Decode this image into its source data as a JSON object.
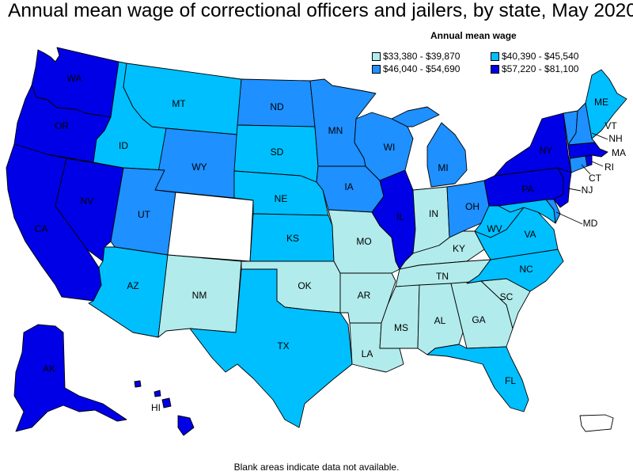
{
  "title": "Annual mean wage of correctional officers and jailers, by state, May 2020",
  "legend": {
    "title": "Annual mean wage",
    "bins": [
      {
        "label": "$33,380 - $39,870",
        "color": "#b2ebeb"
      },
      {
        "label": "$40,390 - $45,540",
        "color": "#00bfff"
      },
      {
        "label": "$46,040 - $54,690",
        "color": "#1e90ff"
      },
      {
        "label": "$57,220 - $81,100",
        "color": "#0000e6"
      }
    ]
  },
  "footnote": "Blank areas indicate data not available.",
  "states": {
    "WA": {
      "label": "WA",
      "bin": 3
    },
    "OR": {
      "label": "OR",
      "bin": 3
    },
    "CA": {
      "label": "CA",
      "bin": 3
    },
    "NV": {
      "label": "NV",
      "bin": 3
    },
    "ID": {
      "label": "ID",
      "bin": 1
    },
    "MT": {
      "label": "MT",
      "bin": 1
    },
    "WY": {
      "label": "WY",
      "bin": 2
    },
    "UT": {
      "label": "UT",
      "bin": 2
    },
    "AZ": {
      "label": "AZ",
      "bin": 1
    },
    "CO": {
      "label": "",
      "bin": null
    },
    "NM": {
      "label": "NM",
      "bin": 0
    },
    "ND": {
      "label": "ND",
      "bin": 2
    },
    "SD": {
      "label": "SD",
      "bin": 1
    },
    "NE": {
      "label": "NE",
      "bin": 1
    },
    "KS": {
      "label": "KS",
      "bin": 1
    },
    "OK": {
      "label": "OK",
      "bin": 0
    },
    "TX": {
      "label": "TX",
      "bin": 1
    },
    "MN": {
      "label": "MN",
      "bin": 2
    },
    "IA": {
      "label": "IA",
      "bin": 2
    },
    "MO": {
      "label": "MO",
      "bin": 0
    },
    "AR": {
      "label": "AR",
      "bin": 0
    },
    "LA": {
      "label": "LA",
      "bin": 0
    },
    "WI": {
      "label": "WI",
      "bin": 2
    },
    "IL": {
      "label": "IL",
      "bin": 3
    },
    "MI": {
      "label": "MI",
      "bin": 2
    },
    "IN": {
      "label": "IN",
      "bin": 0
    },
    "OH": {
      "label": "OH",
      "bin": 2
    },
    "KY": {
      "label": "KY",
      "bin": 0
    },
    "TN": {
      "label": "TN",
      "bin": 0
    },
    "MS": {
      "label": "MS",
      "bin": 0
    },
    "AL": {
      "label": "AL",
      "bin": 0
    },
    "GA": {
      "label": "GA",
      "bin": 0
    },
    "FL": {
      "label": "FL",
      "bin": 1
    },
    "SC": {
      "label": "SC",
      "bin": 0
    },
    "NC": {
      "label": "NC",
      "bin": 1
    },
    "VA": {
      "label": "VA",
      "bin": 1
    },
    "WV": {
      "label": "WV",
      "bin": 1
    },
    "PA": {
      "label": "PA",
      "bin": 3
    },
    "NY": {
      "label": "NY",
      "bin": 3
    },
    "VT": {
      "label": "VT",
      "bin": 2
    },
    "NH": {
      "label": "NH",
      "bin": 2
    },
    "ME": {
      "label": "ME",
      "bin": 1
    },
    "MA": {
      "label": "MA",
      "bin": 3
    },
    "RI": {
      "label": "RI",
      "bin": 3
    },
    "CT": {
      "label": "CT",
      "bin": 2
    },
    "NJ": {
      "label": "NJ",
      "bin": 3
    },
    "DE": {
      "label": "",
      "bin": 2
    },
    "MD": {
      "label": "MD",
      "bin": 1
    },
    "AK": {
      "label": "AK",
      "bin": 3
    },
    "HI": {
      "label": "HI",
      "bin": 3
    },
    "PR": {
      "label": "",
      "bin": null
    }
  }
}
